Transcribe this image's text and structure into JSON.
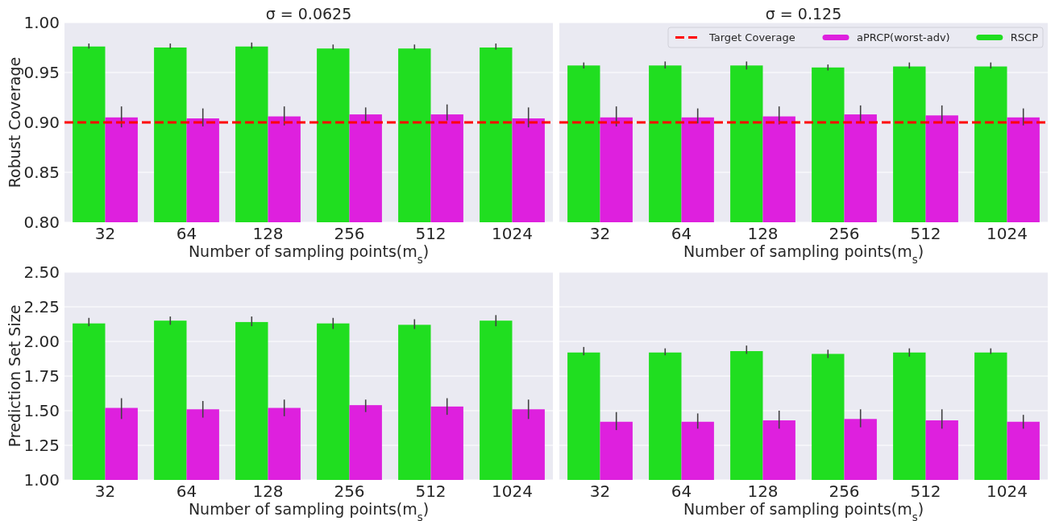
{
  "chart_data": [
    {
      "type": "bar",
      "title": "σ = 0.0625",
      "xlabel": "Number of sampling points(m$_{s}$)",
      "ylabel": "Robust Coverage",
      "categories": [
        "32",
        "64",
        "128",
        "256",
        "512",
        "1024"
      ],
      "series": [
        {
          "color": "#20de20",
          "values": [
            0.976,
            0.975,
            0.976,
            0.974,
            0.974,
            0.975
          ],
          "errors": [
            [
              0.974,
              0.979
            ],
            [
              0.974,
              0.979
            ],
            [
              0.974,
              0.98
            ],
            [
              0.973,
              0.978
            ],
            [
              0.973,
              0.978
            ],
            [
              0.973,
              0.979
            ]
          ]
        },
        {
          "color": "#de20de",
          "values": [
            0.905,
            0.904,
            0.906,
            0.908,
            0.908,
            0.904
          ],
          "errors": [
            [
              0.895,
              0.916
            ],
            [
              0.896,
              0.914
            ],
            [
              0.897,
              0.916
            ],
            [
              0.901,
              0.915
            ],
            [
              0.902,
              0.918
            ],
            [
              0.895,
              0.915
            ]
          ]
        }
      ],
      "ylim": [
        0.8,
        1.0
      ],
      "yticks": [
        {
          "value": 0.8,
          "label": "0.80"
        },
        {
          "value": 0.85,
          "label": "0.85"
        },
        {
          "value": 0.9,
          "label": "0.90"
        },
        {
          "value": 0.95,
          "label": "0.95"
        },
        {
          "value": 1.0,
          "label": "1.00"
        }
      ],
      "grid": "y",
      "ref_lines": [
        {
          "axis": "y",
          "value": 0.9,
          "color": "#ff0000",
          "line_style": "dashed"
        }
      ]
    },
    {
      "type": "bar",
      "title": "σ = 0.125",
      "xlabel": "Number of sampling points(m$_{s}$)",
      "categories": [
        "32",
        "64",
        "128",
        "256",
        "512",
        "1024"
      ],
      "series": [
        {
          "name": "RSCP",
          "color": "#20de20",
          "values": [
            0.957,
            0.957,
            0.957,
            0.955,
            0.956,
            0.956
          ],
          "errors": [
            [
              0.954,
              0.96
            ],
            [
              0.954,
              0.961
            ],
            [
              0.953,
              0.961
            ],
            [
              0.952,
              0.958
            ],
            [
              0.954,
              0.96
            ],
            [
              0.954,
              0.96
            ]
          ]
        },
        {
          "name": "aPRCP(worst-adv)",
          "color": "#de20de",
          "values": [
            0.905,
            0.905,
            0.906,
            0.908,
            0.907,
            0.905
          ],
          "errors": [
            [
              0.896,
              0.916
            ],
            [
              0.899,
              0.914
            ],
            [
              0.898,
              0.916
            ],
            [
              0.9,
              0.917
            ],
            [
              0.899,
              0.917
            ],
            [
              0.897,
              0.914
            ]
          ]
        }
      ],
      "ylim": [
        0.8,
        1.0
      ],
      "yticks": [
        0.8,
        0.85,
        0.9,
        0.95,
        1.0
      ],
      "grid": "y",
      "tick_labels": "x",
      "legend": "top right",
      "ref_lines": [
        {
          "axis": "y",
          "value": 0.9,
          "color": "#ff0000",
          "line_style": "dashed",
          "label": "Target Coverage"
        }
      ]
    },
    {
      "type": "bar",
      "xlabel": "Number of sampling points(m$_{s}$)",
      "ylabel": "Prediction Set Size",
      "categories": [
        "32",
        "64",
        "128",
        "256",
        "512",
        "1024"
      ],
      "series": [
        {
          "color": "#20de20",
          "values": [
            2.13,
            2.15,
            2.14,
            2.13,
            2.12,
            2.15
          ],
          "errors": [
            [
              2.11,
              2.17
            ],
            [
              2.12,
              2.18
            ],
            [
              2.11,
              2.18
            ],
            [
              2.09,
              2.17
            ],
            [
              2.09,
              2.16
            ],
            [
              2.11,
              2.19
            ]
          ]
        },
        {
          "color": "#de20de",
          "values": [
            1.52,
            1.51,
            1.52,
            1.54,
            1.53,
            1.51
          ],
          "errors": [
            [
              1.44,
              1.59
            ],
            [
              1.45,
              1.57
            ],
            [
              1.46,
              1.58
            ],
            [
              1.49,
              1.58
            ],
            [
              1.47,
              1.59
            ],
            [
              1.44,
              1.58
            ]
          ]
        }
      ],
      "ylim": [
        1.0,
        2.5
      ],
      "yticks": [
        {
          "value": 1.0,
          "label": "1.00"
        },
        1.25,
        {
          "value": 1.5,
          "label": "1.50"
        },
        1.75,
        {
          "value": 2.0,
          "label": "2.00"
        },
        2.25,
        {
          "value": 2.5,
          "label": "2.50"
        }
      ],
      "grid": "y"
    },
    {
      "type": "bar",
      "xlabel": "Number of sampling points(m$_{s}$)",
      "categories": [
        "32",
        "64",
        "128",
        "256",
        "512",
        "1024"
      ],
      "series": [
        {
          "color": "#20de20",
          "values": [
            1.92,
            1.92,
            1.93,
            1.91,
            1.92,
            1.92
          ],
          "errors": [
            [
              1.9,
              1.96
            ],
            [
              1.9,
              1.95
            ],
            [
              1.91,
              1.97
            ],
            [
              1.88,
              1.94
            ],
            [
              1.89,
              1.95
            ],
            [
              1.91,
              1.95
            ]
          ]
        },
        {
          "color": "#de20de",
          "values": [
            1.42,
            1.42,
            1.43,
            1.44,
            1.43,
            1.42
          ],
          "errors": [
            [
              1.36,
              1.49
            ],
            [
              1.37,
              1.48
            ],
            [
              1.37,
              1.5
            ],
            [
              1.38,
              1.51
            ],
            [
              1.37,
              1.51
            ],
            [
              1.37,
              1.47
            ]
          ]
        }
      ],
      "ylim": [
        1.0,
        2.5
      ],
      "yticks": [
        1.0,
        1.25,
        1.5,
        1.75,
        2.0,
        2.25,
        2.5
      ],
      "grid": "y",
      "tick_labels": "x"
    }
  ]
}
